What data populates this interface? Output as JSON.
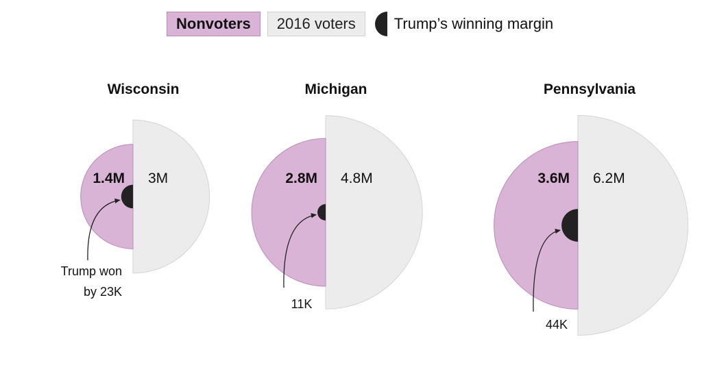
{
  "legend": {
    "nonvoters": "Nonvoters",
    "voters": "2016 voters",
    "margin": "Trump’s winning margin"
  },
  "colors": {
    "nonvoters_fill": "#d9b4d6",
    "nonvoters_stroke": "#b98bb6",
    "voters_fill": "#ececec",
    "voters_stroke": "#d4d4d4",
    "margin_fill": "#222222"
  },
  "chart_data": {
    "type": "semicircle-area",
    "states": [
      {
        "name": "Wisconsin",
        "nonvoters": 1.4,
        "voters": 3.0,
        "margin_k": 23,
        "nonvoters_label": "1.4M",
        "voters_label": "3M",
        "annotation": [
          "Trump won",
          "by 23K"
        ]
      },
      {
        "name": "Michigan",
        "nonvoters": 2.8,
        "voters": 4.8,
        "margin_k": 11,
        "nonvoters_label": "2.8M",
        "voters_label": "4.8M",
        "annotation": [
          "11K"
        ]
      },
      {
        "name": "Pennsylvania",
        "nonvoters": 3.6,
        "voters": 6.2,
        "margin_k": 44,
        "nonvoters_label": "3.6M",
        "voters_label": "6.2M",
        "annotation": [
          "44K"
        ]
      }
    ]
  }
}
